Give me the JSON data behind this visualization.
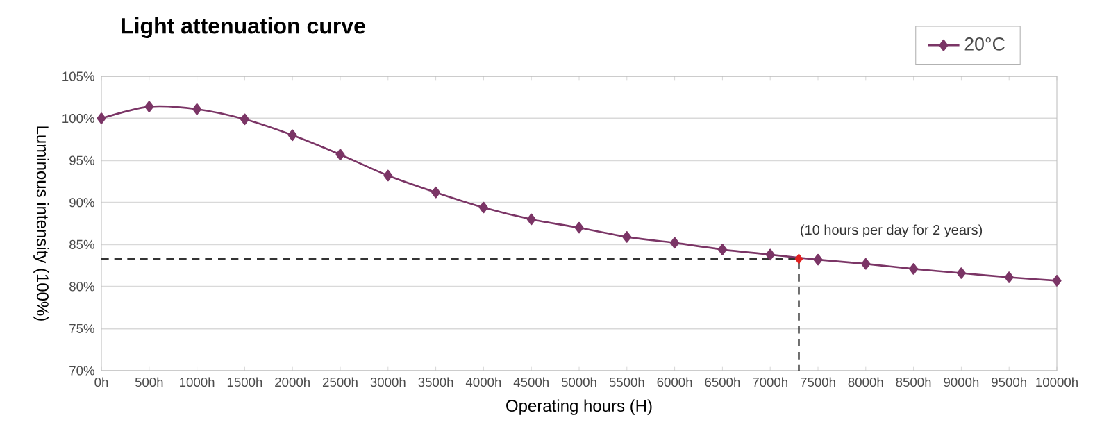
{
  "chart_data": {
    "type": "line",
    "title": "Light attenuation curve",
    "xlabel": "Operating hours (H)",
    "ylabel": "Luminous intensity (100%)",
    "xlim": [
      0,
      10000
    ],
    "ylim": [
      70,
      105
    ],
    "xticks": [
      {
        "value": 0,
        "label": "0h"
      },
      {
        "value": 500,
        "label": "500h"
      },
      {
        "value": 1000,
        "label": "1000h"
      },
      {
        "value": 1500,
        "label": "1500h"
      },
      {
        "value": 2000,
        "label": "2000h"
      },
      {
        "value": 2500,
        "label": "2500h"
      },
      {
        "value": 3000,
        "label": "3000h"
      },
      {
        "value": 3500,
        "label": "3500h"
      },
      {
        "value": 4000,
        "label": "4000h"
      },
      {
        "value": 4500,
        "label": "4500h"
      },
      {
        "value": 5000,
        "label": "5000h"
      },
      {
        "value": 5500,
        "label": "5500h"
      },
      {
        "value": 6000,
        "label": "6000h"
      },
      {
        "value": 6500,
        "label": "6500h"
      },
      {
        "value": 7000,
        "label": "7000h"
      },
      {
        "value": 7500,
        "label": "7500h"
      },
      {
        "value": 8000,
        "label": "8000h"
      },
      {
        "value": 8500,
        "label": "8500h"
      },
      {
        "value": 9000,
        "label": "9000h"
      },
      {
        "value": 9500,
        "label": "9500h"
      },
      {
        "value": 10000,
        "label": "10000h"
      }
    ],
    "yticks": [
      {
        "value": 70,
        "label": "70%"
      },
      {
        "value": 75,
        "label": "75%"
      },
      {
        "value": 80,
        "label": "80%"
      },
      {
        "value": 85,
        "label": "85%"
      },
      {
        "value": 90,
        "label": "90%"
      },
      {
        "value": 95,
        "label": "95%"
      },
      {
        "value": 100,
        "label": "100%"
      },
      {
        "value": 105,
        "label": "105%"
      }
    ],
    "grid": "y",
    "legend": "top right",
    "series": [
      {
        "name": "20°C",
        "color": "#7b3566",
        "marker": "diamond",
        "line_style": "solid",
        "x": [
          0,
          500,
          1000,
          1500,
          2000,
          2500,
          3000,
          3500,
          4000,
          4500,
          5000,
          5500,
          6000,
          6500,
          7000,
          7500,
          8000,
          8500,
          9000,
          9500,
          10000
        ],
        "values": [
          100,
          101.4,
          101.1,
          99.9,
          98.0,
          95.7,
          93.2,
          91.2,
          89.4,
          88.0,
          87.0,
          85.9,
          85.2,
          84.4,
          83.8,
          83.2,
          82.7,
          82.1,
          81.6,
          81.1,
          80.7
        ]
      },
      {
        "type": "line",
        "color": "#333333",
        "marker": "none",
        "line_style": "dashed",
        "x": [
          0,
          7300,
          7300
        ],
        "values": [
          83.3,
          83.3,
          70
        ]
      },
      {
        "type": "scatter",
        "color": "#e02020",
        "marker": "diamond",
        "x": [
          7300
        ],
        "values": [
          83.3
        ]
      }
    ],
    "annotations": [
      {
        "text": "(10 hours per day for 2 years)",
        "x": 7300,
        "y": 83.3
      }
    ]
  }
}
